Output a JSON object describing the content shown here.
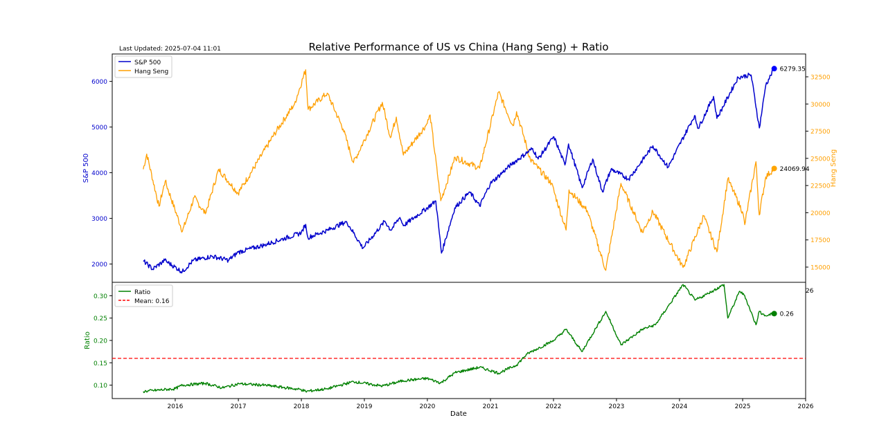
{
  "figure": {
    "title": "Relative Performance of US vs China (Hang Seng) + Ratio",
    "last_updated": "Last Updated: 2025-07-04 11:01",
    "xlabel": "Date"
  },
  "chart_data": [
    {
      "type": "line",
      "panel": "top",
      "xlim": [
        "2015-01-01",
        "2026-01-01"
      ],
      "x_ticks": [
        "2016",
        "2017",
        "2018",
        "2019",
        "2020",
        "2021",
        "2022",
        "2023",
        "2024",
        "2025",
        "2026"
      ],
      "left_axis": {
        "label": "S&P 500",
        "ylim": [
          1600,
          6600
        ],
        "ticks": [
          "2000",
          "3000",
          "4000",
          "5000",
          "6000"
        ]
      },
      "right_axis": {
        "label": "Hang Seng",
        "ylim": [
          13600,
          34600
        ],
        "ticks": [
          "15000",
          "17500",
          "20000",
          "22500",
          "25000",
          "27500",
          "30000",
          "32500"
        ]
      },
      "legend": "upper-left",
      "series": [
        {
          "name": "S&P 500",
          "axis": "left",
          "color": "#0000cc",
          "points": [
            [
              "2015-06-30",
              2070
            ],
            [
              "2015-08-24",
              1890
            ],
            [
              "2015-11-01",
              2080
            ],
            [
              "2016-02-11",
              1830
            ],
            [
              "2016-04-15",
              2080
            ],
            [
              "2016-08-01",
              2170
            ],
            [
              "2016-11-04",
              2085
            ],
            [
              "2017-01-01",
              2260
            ],
            [
              "2017-06-01",
              2420
            ],
            [
              "2017-12-31",
              2680
            ],
            [
              "2018-01-26",
              2870
            ],
            [
              "2018-02-08",
              2580
            ],
            [
              "2018-06-01",
              2740
            ],
            [
              "2018-09-20",
              2930
            ],
            [
              "2018-12-24",
              2350
            ],
            [
              "2019-04-30",
              2940
            ],
            [
              "2019-06-03",
              2740
            ],
            [
              "2019-07-26",
              3020
            ],
            [
              "2019-08-15",
              2840
            ],
            [
              "2019-12-31",
              3230
            ],
            [
              "2020-02-19",
              3380
            ],
            [
              "2020-03-23",
              2240
            ],
            [
              "2020-06-08",
              3230
            ],
            [
              "2020-09-02",
              3580
            ],
            [
              "2020-10-30",
              3270
            ],
            [
              "2020-12-31",
              3760
            ],
            [
              "2021-04-30",
              4180
            ],
            [
              "2021-09-02",
              4530
            ],
            [
              "2021-10-04",
              4300
            ],
            [
              "2022-01-03",
              4790
            ],
            [
              "2022-03-08",
              4170
            ],
            [
              "2022-03-29",
              4630
            ],
            [
              "2022-06-16",
              3670
            ],
            [
              "2022-08-16",
              4300
            ],
            [
              "2022-10-12",
              3580
            ],
            [
              "2022-12-01",
              4080
            ],
            [
              "2023-03-13",
              3860
            ],
            [
              "2023-07-31",
              4590
            ],
            [
              "2023-10-27",
              4120
            ],
            [
              "2024-03-28",
              5250
            ],
            [
              "2024-04-19",
              4970
            ],
            [
              "2024-07-16",
              5670
            ],
            [
              "2024-08-05",
              5190
            ],
            [
              "2024-12-06",
              6090
            ],
            [
              "2025-02-19",
              6140
            ],
            [
              "2025-04-08",
              4980
            ],
            [
              "2025-05-15",
              5920
            ],
            [
              "2025-07-03",
              6279.35
            ]
          ]
        },
        {
          "name": "Hang Seng",
          "axis": "right",
          "color": "#ff9f00",
          "points": [
            [
              "2015-06-30",
              24000
            ],
            [
              "2015-07-20",
              25400
            ],
            [
              "2015-09-29",
              20600
            ],
            [
              "2015-11-04",
              22900
            ],
            [
              "2016-02-12",
              18300
            ],
            [
              "2016-04-20",
              21400
            ],
            [
              "2016-06-24",
              19900
            ],
            [
              "2016-09-09",
              24000
            ],
            [
              "2016-12-30",
              21800
            ],
            [
              "2017-03-31",
              24100
            ],
            [
              "2017-07-31",
              27300
            ],
            [
              "2017-11-22",
              30000
            ],
            [
              "2018-01-26",
              33150
            ],
            [
              "2018-02-09",
              29500
            ],
            [
              "2018-05-31",
              31000
            ],
            [
              "2018-08-31",
              27700
            ],
            [
              "2018-10-30",
              24600
            ],
            [
              "2019-04-15",
              30150
            ],
            [
              "2019-06-01",
              26900
            ],
            [
              "2019-07-05",
              28800
            ],
            [
              "2019-08-15",
              25300
            ],
            [
              "2019-12-31",
              28200
            ],
            [
              "2020-01-17",
              29000
            ],
            [
              "2020-03-19",
              21100
            ],
            [
              "2020-06-10",
              25100
            ],
            [
              "2020-10-30",
              24100
            ],
            [
              "2021-02-17",
              31100
            ],
            [
              "2021-05-11",
              28000
            ],
            [
              "2021-06-01",
              29300
            ],
            [
              "2021-08-20",
              24900
            ],
            [
              "2021-12-20",
              22700
            ],
            [
              "2022-03-15",
              18400
            ],
            [
              "2022-04-01",
              22100
            ],
            [
              "2022-07-15",
              20200
            ],
            [
              "2022-10-31",
              14700
            ],
            [
              "2023-01-27",
              22700
            ],
            [
              "2023-05-31",
              18200
            ],
            [
              "2023-07-31",
              20100
            ],
            [
              "2024-01-22",
              14960
            ],
            [
              "2024-05-20",
              19700
            ],
            [
              "2024-08-05",
              16400
            ],
            [
              "2024-10-07",
              23100
            ],
            [
              "2024-12-31",
              20100
            ],
            [
              "2025-01-13",
              18900
            ],
            [
              "2025-03-19",
              24700
            ],
            [
              "2025-04-07",
              19800
            ],
            [
              "2025-05-15",
              23300
            ],
            [
              "2025-07-03",
              24069.94
            ]
          ]
        }
      ],
      "end_labels": {
        "S&P 500": "6279.35",
        "Hang Seng": "24069.94"
      }
    },
    {
      "type": "line",
      "panel": "bottom",
      "xlim": [
        "2015-01-01",
        "2026-01-01"
      ],
      "y_axis": {
        "label": "Ratio",
        "ylim": [
          0.07,
          0.33
        ],
        "ticks": [
          "0.10",
          "0.15",
          "0.20",
          "0.25",
          "0.30"
        ]
      },
      "legend": "upper-left",
      "series": [
        {
          "name": "Ratio",
          "color": "#008000",
          "points": [
            [
              "2015-06-30",
              0.086
            ],
            [
              "2016-01-01",
              0.092
            ],
            [
              "2016-02-12",
              0.1
            ],
            [
              "2016-06-24",
              0.104
            ],
            [
              "2016-09-30",
              0.094
            ],
            [
              "2017-01-04",
              0.103
            ],
            [
              "2017-06-01",
              0.1
            ],
            [
              "2017-12-31",
              0.09
            ],
            [
              "2018-01-26",
              0.086
            ],
            [
              "2018-06-01",
              0.092
            ],
            [
              "2018-10-30",
              0.108
            ],
            [
              "2019-04-15",
              0.098
            ],
            [
              "2019-08-15",
              0.11
            ],
            [
              "2019-12-31",
              0.115
            ],
            [
              "2020-03-19",
              0.105
            ],
            [
              "2020-06-10",
              0.128
            ],
            [
              "2020-10-30",
              0.14
            ],
            [
              "2021-02-17",
              0.127
            ],
            [
              "2021-06-01",
              0.145
            ],
            [
              "2021-08-01",
              0.17
            ],
            [
              "2022-01-03",
              0.2
            ],
            [
              "2022-03-15",
              0.225
            ],
            [
              "2022-06-15",
              0.175
            ],
            [
              "2022-10-31",
              0.265
            ],
            [
              "2023-01-27",
              0.19
            ],
            [
              "2023-05-31",
              0.225
            ],
            [
              "2023-08-15",
              0.235
            ],
            [
              "2024-01-22",
              0.325
            ],
            [
              "2024-03-31",
              0.29
            ],
            [
              "2024-06-15",
              0.305
            ],
            [
              "2024-09-15",
              0.325
            ],
            [
              "2024-10-07",
              0.25
            ],
            [
              "2024-12-15",
              0.31
            ],
            [
              "2025-01-13",
              0.3
            ],
            [
              "2025-03-19",
              0.235
            ],
            [
              "2025-04-07",
              0.265
            ],
            [
              "2025-05-15",
              0.255
            ],
            [
              "2025-07-03",
              0.26
            ]
          ]
        },
        {
          "name": "Mean: 0.16",
          "color": "#ff0000",
          "style": "dashed",
          "value": 0.16
        }
      ],
      "end_labels": {
        "Ratio": "0.26"
      },
      "edge_text": "26"
    }
  ]
}
